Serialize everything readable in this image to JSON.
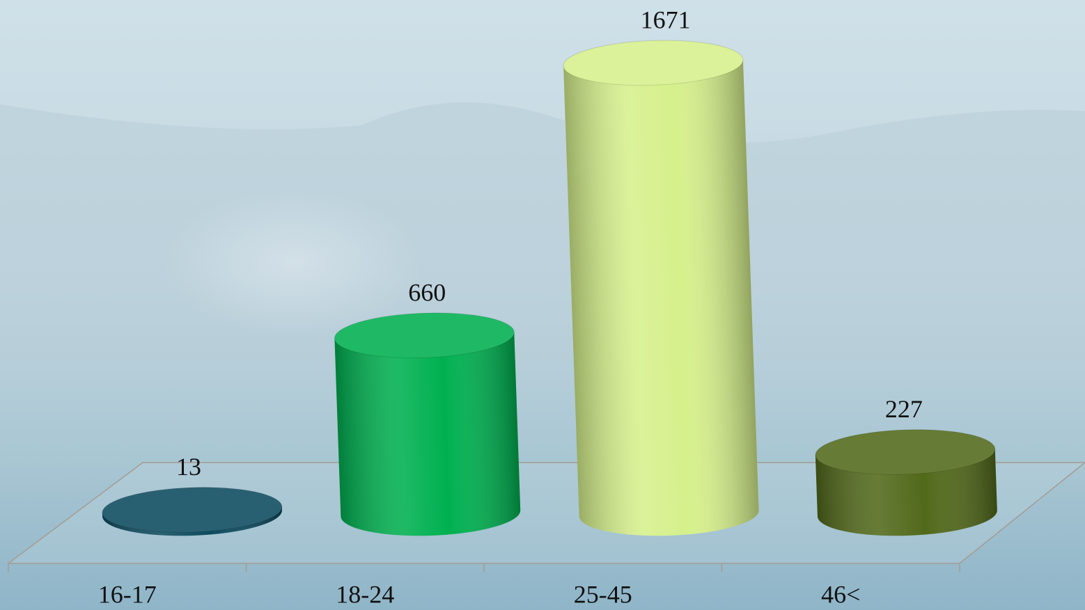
{
  "chart_data": {
    "type": "bar",
    "categories": [
      "16-17",
      "18-24",
      "25-45",
      "46<"
    ],
    "values": [
      13,
      660,
      1671,
      227
    ],
    "colors": [
      "#0c4a5e",
      "#00b050",
      "#d6f08c",
      "#51691a"
    ]
  }
}
